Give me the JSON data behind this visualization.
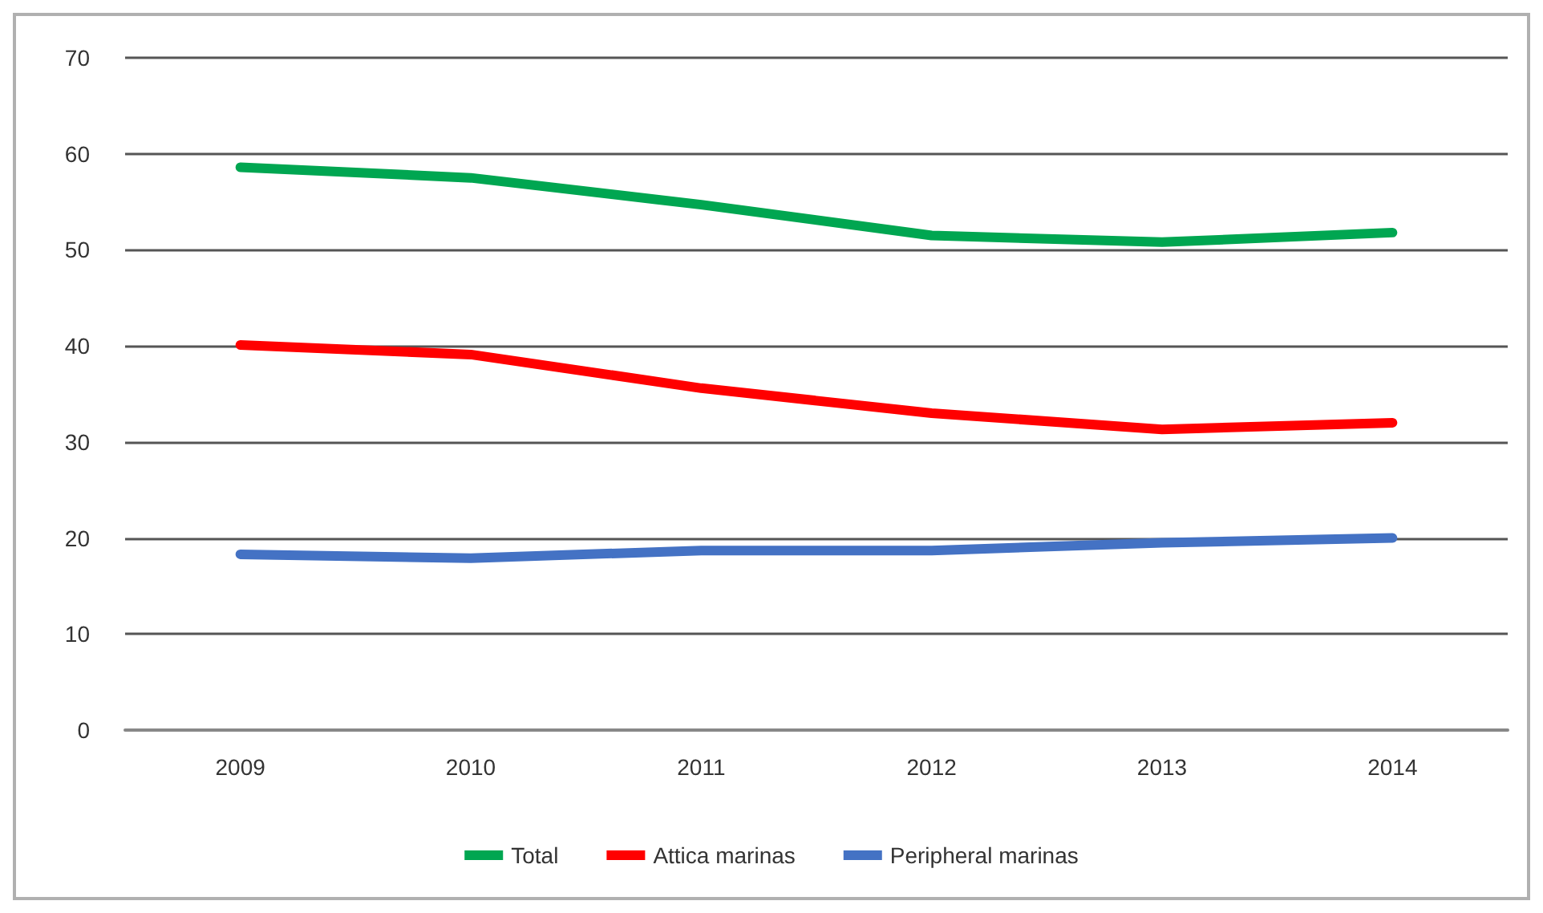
{
  "chart_data": {
    "type": "line",
    "categories": [
      "2009",
      "2010",
      "2011",
      "2012",
      "2013",
      "2014"
    ],
    "series": [
      {
        "name": "Total",
        "color": "#00a651",
        "values": [
          58.6,
          57.5,
          54.7,
          51.5,
          50.8,
          51.8
        ]
      },
      {
        "name": "Attica marinas",
        "color": "#ff0000",
        "values": [
          40.1,
          39.1,
          35.6,
          33.0,
          31.3,
          32.0
        ]
      },
      {
        "name": "Peripheral marinas",
        "color": "#4472c4",
        "values": [
          18.3,
          17.9,
          18.7,
          18.7,
          19.5,
          20.0
        ]
      }
    ],
    "ylim": [
      0,
      70
    ],
    "yticks": [
      0,
      10,
      20,
      30,
      40,
      50,
      60,
      70
    ],
    "grid": "y",
    "legend": "bottom",
    "marker": "none",
    "line_style": "solid"
  }
}
